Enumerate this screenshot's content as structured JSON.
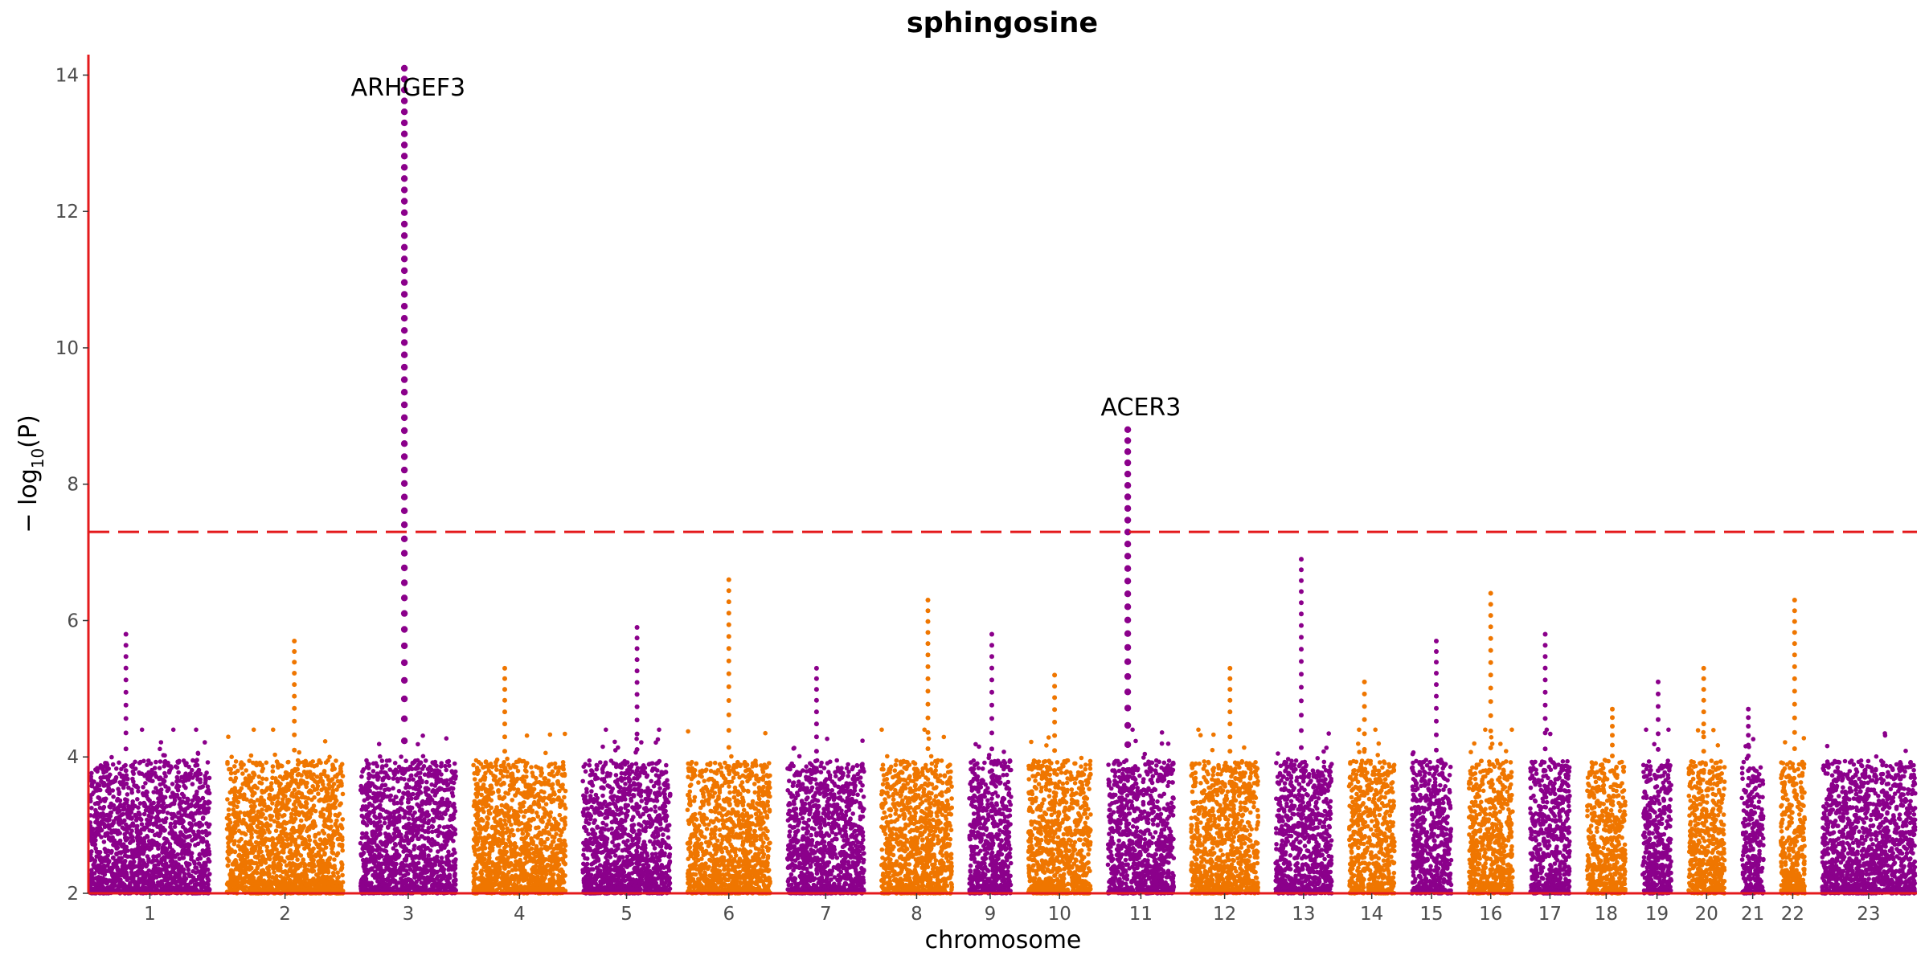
{
  "chart_data": {
    "type": "scatter",
    "subtype": "manhattan",
    "title": "sphingosine",
    "xlabel": "chromosome",
    "ylabel_prefix": "− log",
    "ylabel_sub": "10",
    "ylabel_suffix": "(P)",
    "ylim": [
      2,
      14.3
    ],
    "yticks": [
      2,
      4,
      6,
      8,
      10,
      12,
      14
    ],
    "significance_threshold": 7.3,
    "threshold_color": "#e41a1c",
    "axis_color": "#e41a1c",
    "grid": false,
    "colors": {
      "odd": "#8b008b",
      "even": "#ef7600"
    },
    "chromosomes": [
      {
        "label": "1",
        "length": 1.0,
        "peak": 5.8
      },
      {
        "label": "2",
        "length": 0.97,
        "peak": 5.7
      },
      {
        "label": "3",
        "length": 0.8,
        "peak": 14.1
      },
      {
        "label": "4",
        "length": 0.77,
        "peak": 5.3
      },
      {
        "label": "5",
        "length": 0.73,
        "peak": 5.9
      },
      {
        "label": "6",
        "length": 0.69,
        "peak": 6.6
      },
      {
        "label": "7",
        "length": 0.64,
        "peak": 5.3
      },
      {
        "label": "8",
        "length": 0.59,
        "peak": 6.3
      },
      {
        "label": "9",
        "length": 0.35,
        "peak": 5.8
      },
      {
        "label": "10",
        "length": 0.52,
        "peak": 5.2
      },
      {
        "label": "11",
        "length": 0.55,
        "peak": 8.8
      },
      {
        "label": "12",
        "length": 0.56,
        "peak": 5.3
      },
      {
        "label": "13",
        "length": 0.47,
        "peak": 6.9
      },
      {
        "label": "14",
        "length": 0.38,
        "peak": 5.1
      },
      {
        "label": "15",
        "length": 0.33,
        "peak": 5.7
      },
      {
        "label": "16",
        "length": 0.37,
        "peak": 6.4
      },
      {
        "label": "17",
        "length": 0.33,
        "peak": 5.8
      },
      {
        "label": "18",
        "length": 0.32,
        "peak": 4.7
      },
      {
        "label": "19",
        "length": 0.24,
        "peak": 5.1
      },
      {
        "label": "20",
        "length": 0.3,
        "peak": 5.3
      },
      {
        "label": "21",
        "length": 0.18,
        "peak": 4.7
      },
      {
        "label": "22",
        "length": 0.2,
        "peak": 6.3
      },
      {
        "label": "23",
        "length": 0.78,
        "peak": 3.7
      }
    ],
    "annotations": [
      {
        "label": "ARHGEF3",
        "chromosome": "3",
        "value": 14.1
      },
      {
        "label": "ACER3",
        "chromosome": "11",
        "value": 8.8
      }
    ]
  }
}
